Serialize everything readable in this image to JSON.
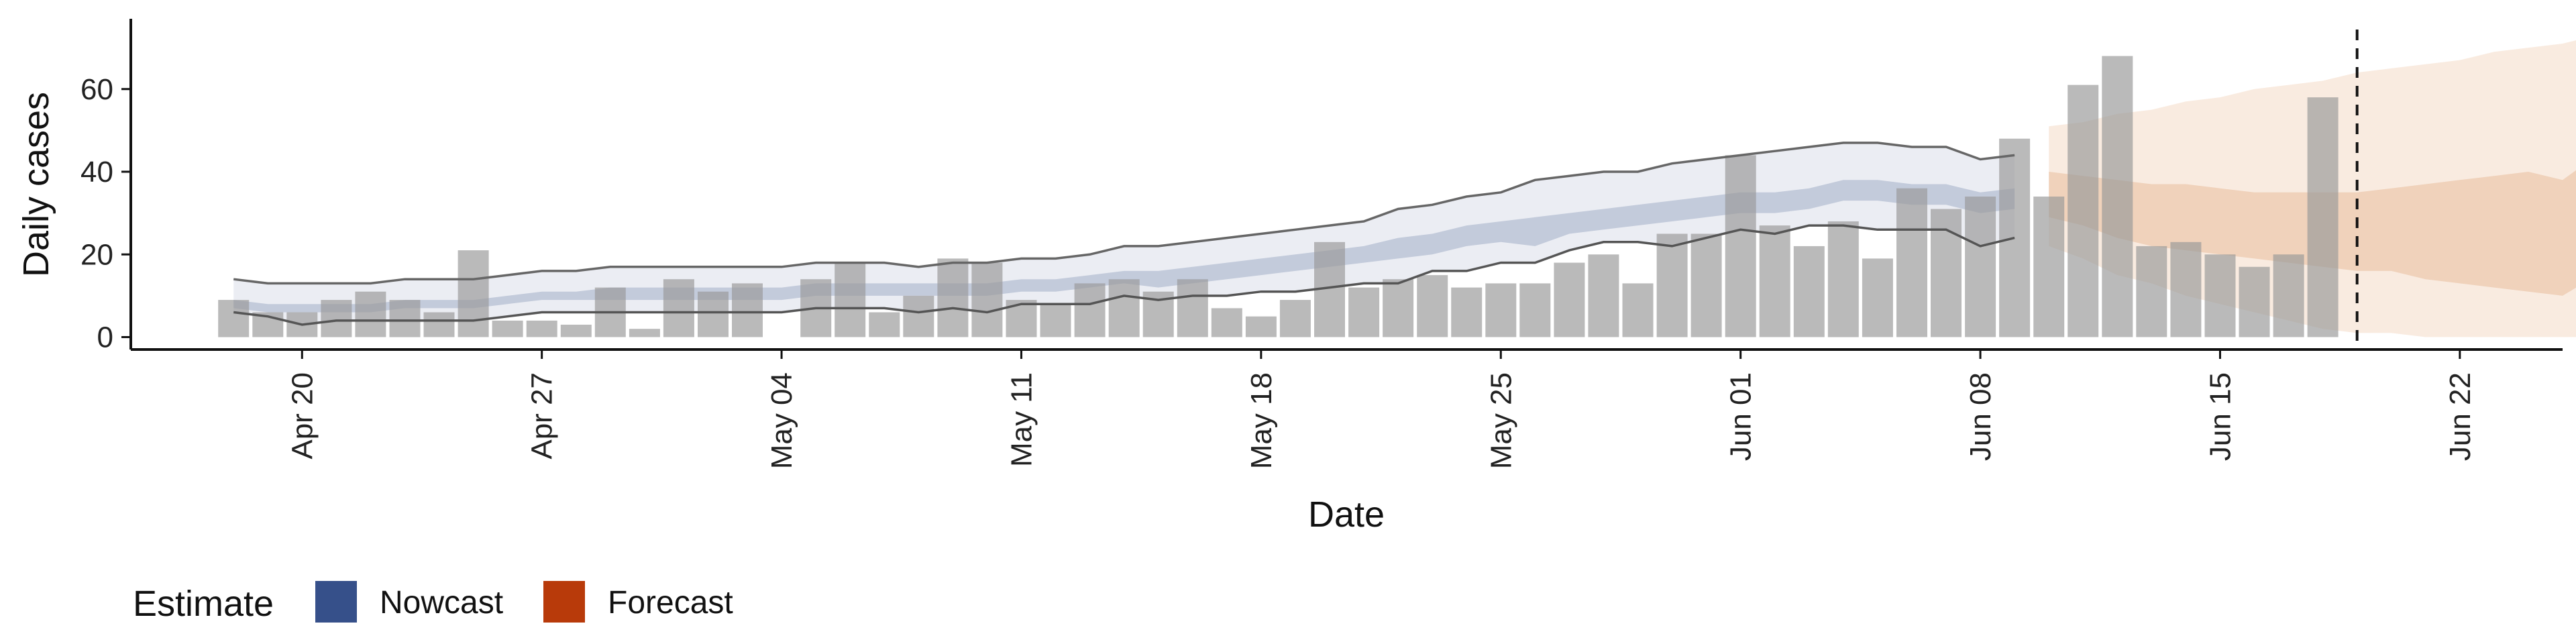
{
  "chart_data": {
    "type": "bar",
    "title": "",
    "xlabel": "Date",
    "ylabel": "Daily cases",
    "x_start": "2020-04-18",
    "ylim": [
      -3,
      77
    ],
    "yticks": [
      0,
      20,
      40,
      60
    ],
    "xticks": [
      {
        "label": "Apr 20",
        "date": "2020-04-20"
      },
      {
        "label": "Apr 27",
        "date": "2020-04-27"
      },
      {
        "label": "May 04",
        "date": "2020-05-04"
      },
      {
        "label": "May 11",
        "date": "2020-05-11"
      },
      {
        "label": "May 18",
        "date": "2020-05-18"
      },
      {
        "label": "May 25",
        "date": "2020-05-25"
      },
      {
        "label": "Jun 01",
        "date": "2020-06-01"
      },
      {
        "label": "Jun 08",
        "date": "2020-06-08"
      },
      {
        "label": "Jun 15",
        "date": "2020-06-15"
      },
      {
        "label": "Jun 22",
        "date": "2020-06-22"
      }
    ],
    "xlim": [
      "2020-04-15",
      "2020-06-25"
    ],
    "bars": [
      9,
      6,
      6,
      9,
      11,
      9,
      6,
      21,
      4,
      4,
      3,
      12,
      2,
      14,
      11,
      13,
      0,
      14,
      18,
      6,
      10,
      19,
      18,
      9,
      8,
      13,
      14,
      11,
      14,
      7,
      5,
      9,
      23,
      12,
      14,
      15,
      12,
      13,
      13,
      18,
      20,
      13,
      25,
      25,
      44,
      27,
      22,
      28,
      19,
      36,
      31,
      34,
      48,
      34,
      61,
      68,
      22,
      23,
      20,
      17,
      20,
      58
    ],
    "vline_date": "2020-06-19",
    "grid": false,
    "legend": {
      "title": "Estimate",
      "position": "bottom-left",
      "entries": [
        {
          "label": "Nowcast",
          "color": "#36508a"
        },
        {
          "label": "Forecast",
          "color": "#b83a0a"
        }
      ]
    },
    "nowcast": {
      "color": "#36508a",
      "start_date": "2020-04-18",
      "outer_upper": [
        14,
        13,
        13,
        13,
        13,
        14,
        14,
        14,
        15,
        16,
        16,
        17,
        17,
        17,
        17,
        17,
        17,
        18,
        18,
        18,
        17,
        18,
        18,
        19,
        19,
        20,
        22,
        22,
        23,
        24,
        25,
        26,
        27,
        28,
        31,
        32,
        34,
        35,
        38,
        39,
        40,
        40,
        42,
        43,
        44,
        45,
        46,
        47,
        47,
        46,
        46,
        43,
        44
      ],
      "outer_lower": [
        6,
        5,
        3,
        4,
        4,
        4,
        4,
        4,
        5,
        6,
        6,
        6,
        6,
        6,
        6,
        6,
        6,
        7,
        7,
        7,
        6,
        7,
        6,
        8,
        8,
        8,
        10,
        9,
        10,
        10,
        11,
        11,
        12,
        13,
        13,
        16,
        16,
        18,
        18,
        21,
        23,
        23,
        22,
        24,
        26,
        25,
        27,
        27,
        26,
        26,
        26,
        22,
        24
      ],
      "inner_upper": [
        9,
        8,
        8,
        8,
        8,
        9,
        9,
        9,
        10,
        11,
        11,
        12,
        12,
        12,
        12,
        12,
        12,
        13,
        13,
        13,
        13,
        13,
        13,
        14,
        14,
        15,
        16,
        16,
        17,
        18,
        19,
        20,
        21,
        22,
        24,
        25,
        27,
        28,
        29,
        30,
        31,
        32,
        33,
        34,
        35,
        35,
        36,
        38,
        38,
        37,
        37,
        35,
        36
      ],
      "inner_lower": [
        7,
        6,
        6,
        6,
        6,
        7,
        7,
        7,
        8,
        9,
        9,
        9,
        9,
        9,
        9,
        9,
        9,
        10,
        10,
        10,
        10,
        10,
        10,
        11,
        11,
        12,
        13,
        12,
        13,
        14,
        15,
        16,
        17,
        18,
        19,
        20,
        22,
        23,
        22,
        25,
        26,
        27,
        28,
        29,
        30,
        30,
        31,
        33,
        33,
        32,
        32,
        30,
        31
      ]
    },
    "forecast": {
      "color": "#d9864a",
      "start_date": "2020-06-10",
      "outer_upper": [
        51,
        52,
        54,
        55,
        57,
        58,
        60,
        61,
        62,
        64,
        65,
        66,
        67,
        69,
        70,
        71,
        73
      ],
      "outer_lower": [
        22,
        19,
        15,
        13,
        10,
        8,
        6,
        4,
        2,
        1,
        1,
        0,
        0,
        0,
        0,
        0,
        0
      ],
      "inner_upper": [
        40,
        39,
        38,
        37,
        37,
        36,
        35,
        35,
        35,
        35,
        36,
        37,
        38,
        39,
        40,
        38,
        44
      ],
      "inner_lower": [
        29,
        27,
        24,
        22,
        21,
        20,
        19,
        18,
        17,
        16,
        16,
        14,
        13,
        12,
        11,
        10,
        15
      ]
    }
  }
}
